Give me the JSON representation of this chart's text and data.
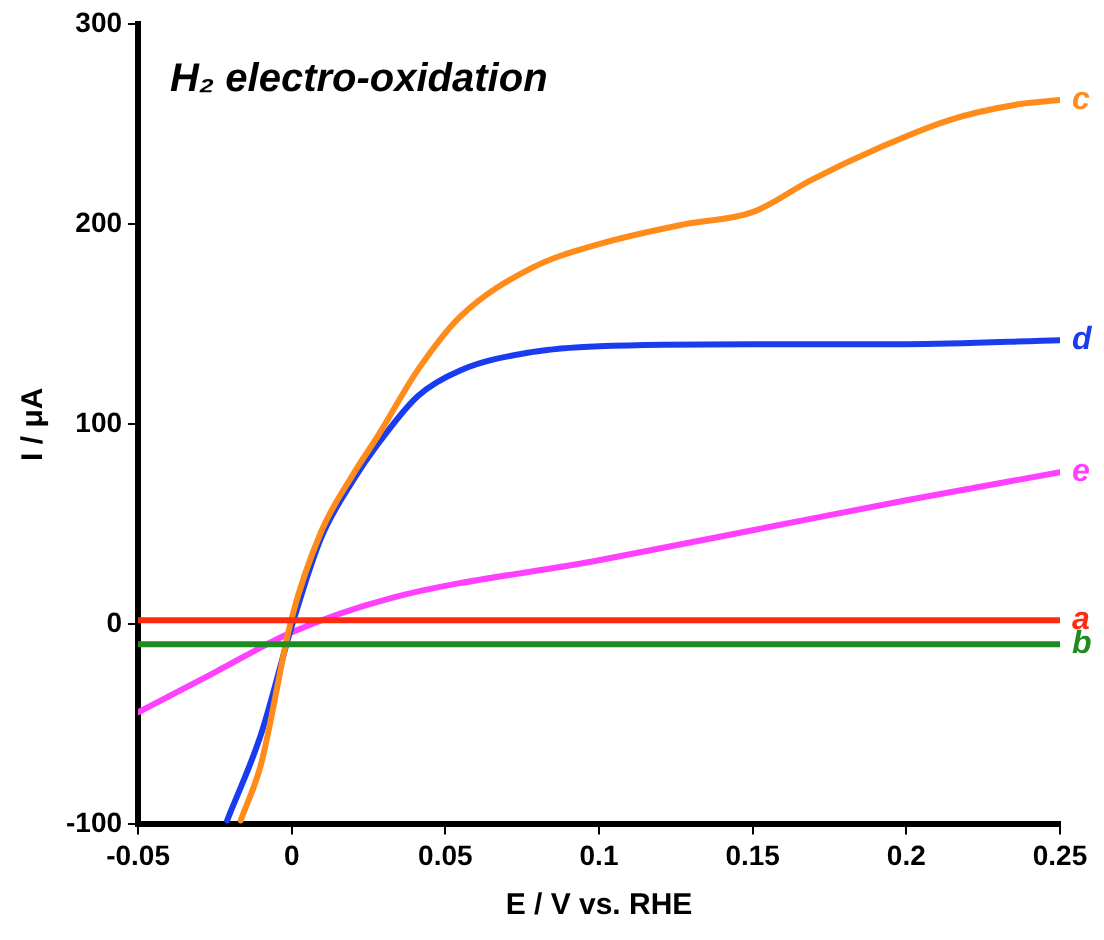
{
  "chart_data": {
    "type": "line",
    "xlabel": "E / V vs. RHE",
    "ylabel": "I / μA",
    "annotations": [
      "H₂ electro-oxidation"
    ],
    "xlim": [
      -0.05,
      0.25
    ],
    "xticks": [
      -0.05,
      0,
      0.05,
      0.1,
      0.15,
      0.2,
      0.25
    ],
    "ylim": [
      -100,
      300
    ],
    "yticks": [
      -100,
      0,
      100,
      200,
      300
    ],
    "grid": false,
    "legend": false,
    "marker": "none",
    "line_style": "solid",
    "series": [
      {
        "name": "a",
        "color": "#ff2a10",
        "x": [
          -0.05,
          0.25
        ],
        "values": [
          2,
          2
        ]
      },
      {
        "name": "b",
        "color": "#1e8c1e",
        "x": [
          -0.05,
          0.0,
          0.1,
          0.2,
          0.25
        ],
        "values": [
          -10,
          -10,
          -10,
          -10,
          -10
        ]
      },
      {
        "name": "c",
        "color": "#ff8c1a",
        "x": [
          -0.0166,
          -0.01,
          0,
          0.0095,
          0.02,
          0.028,
          0.041,
          0.055,
          0.078,
          0.1,
          0.128,
          0.15,
          0.169,
          0.191,
          0.214,
          0.237,
          0.25
        ],
        "values": [
          -98,
          -70,
          3,
          46,
          75,
          94,
          127,
          154,
          178,
          190,
          200,
          206,
          222,
          238,
          252,
          260,
          262
        ]
      },
      {
        "name": "d",
        "color": "#1a3cf0",
        "x": [
          -0.021,
          -0.01,
          0,
          0.0095,
          0.02,
          0.028,
          0.041,
          0.055,
          0.078,
          0.1,
          0.15,
          0.2,
          0.25
        ],
        "values": [
          -98,
          -55,
          -1,
          43,
          72,
          90,
          114,
          127,
          136,
          139,
          140,
          140,
          142
        ]
      },
      {
        "name": "e",
        "color": "#ff40ff",
        "x": [
          -0.05,
          -0.025,
          0,
          0.032,
          0.1,
          0.15,
          0.2,
          0.25
        ],
        "values": [
          -44,
          -24,
          -4,
          13,
          32,
          47,
          62,
          76
        ]
      }
    ]
  }
}
